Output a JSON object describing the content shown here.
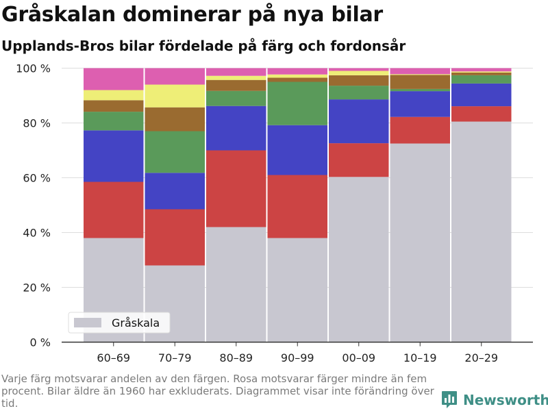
{
  "header": {
    "title": "Gråskalan dominerar på nya bilar",
    "subtitle": "Upplands-Bros bilar fördelade på färg och fordonsår"
  },
  "footer": {
    "note": "Varje färg motsvarar andelen av den färgen. Rosa motsvarar färger mindre än fem procent. Bilar äldre än 1960 har exkluderats. Diagrammet visar inte förändring över tid.",
    "brand": "Newsworthy",
    "brand_color": "#3f8f86"
  },
  "chart_data": {
    "type": "bar",
    "stacked": true,
    "categories": [
      "60–69",
      "70–79",
      "80–89",
      "90–99",
      "00–09",
      "10–19",
      "20–29"
    ],
    "ylim": [
      0,
      100
    ],
    "yticks": [
      0,
      20,
      40,
      60,
      80,
      100
    ],
    "ytick_labels": [
      "0 %",
      "20 %",
      "40 %",
      "60 %",
      "80 %",
      "100 %"
    ],
    "grid": true,
    "legend_position": "bottom-left",
    "series": [
      {
        "key": "graskala",
        "name": "Gråskala",
        "color": "#c8c7d0",
        "values": [
          38.0,
          28.0,
          42.0,
          38.0,
          60.3,
          72.5,
          80.5
        ]
      },
      {
        "key": "rod",
        "color": "#cc4444",
        "values": [
          20.5,
          20.5,
          28.0,
          23.0,
          12.3,
          9.7,
          5.6
        ]
      },
      {
        "key": "bla",
        "color": "#4444c4",
        "values": [
          18.8,
          13.3,
          16.2,
          18.2,
          16.0,
          9.4,
          8.3
        ]
      },
      {
        "key": "gron",
        "color": "#5a9a5a",
        "values": [
          6.8,
          15.2,
          5.5,
          15.8,
          5.0,
          0.8,
          3.0
        ]
      },
      {
        "key": "brun",
        "color": "#9a6b30",
        "values": [
          4.2,
          8.7,
          4.0,
          1.5,
          3.8,
          5.1,
          1.0
        ]
      },
      {
        "key": "gul",
        "color": "#eeee77",
        "values": [
          3.7,
          8.3,
          1.5,
          1.2,
          1.6,
          0.3,
          0.4
        ]
      },
      {
        "key": "rosa",
        "color": "#dd5fb0",
        "values": [
          8.0,
          6.0,
          2.8,
          2.3,
          1.0,
          2.2,
          1.2
        ]
      }
    ]
  }
}
